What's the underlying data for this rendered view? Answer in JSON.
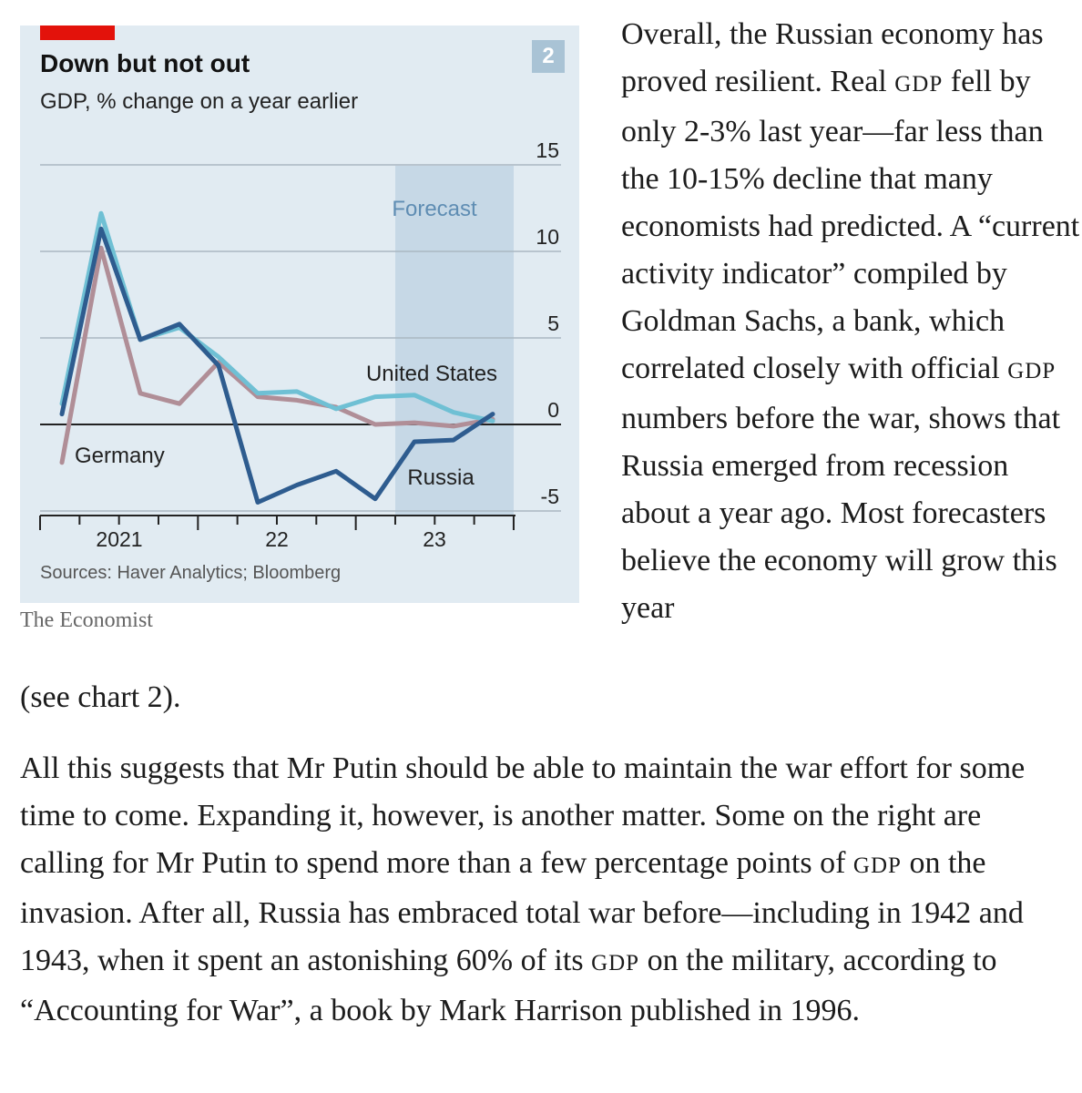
{
  "chart": {
    "badge": "2",
    "title": "Down but not out",
    "subtitle": "GDP, % change on a year earlier",
    "source": "Sources: Haver Analytics; Bloomberg",
    "brand": "The Economist",
    "forecast_label": "Forecast",
    "series_labels": {
      "us": "United States",
      "germany": "Germany",
      "russia": "Russia"
    },
    "colors": {
      "us": "#6fc0d4",
      "germany": "#b08e97",
      "russia": "#2e5c8f",
      "forecast": "#c6d8e6",
      "grid": "#aab8c2",
      "zero": "#222222"
    }
  },
  "chart_data": {
    "type": "line",
    "title": "Down but not out",
    "subtitle": "GDP, % change on a year earlier",
    "x_ticks": [
      "2021",
      "22",
      "23"
    ],
    "x": [
      "2020 Q4",
      "2021 Q1",
      "2021 Q2",
      "2021 Q3",
      "2021 Q4",
      "2022 Q1",
      "2022 Q2",
      "2022 Q3",
      "2022 Q4",
      "2023 Q1",
      "2023 Q2",
      "2023 Q3",
      "2023 Q4"
    ],
    "y_ticks": [
      15,
      10,
      5,
      0,
      -5
    ],
    "ylim": [
      -5,
      15
    ],
    "forecast_from": "2023 Q1",
    "series": [
      {
        "name": "United States",
        "values": [
          1.2,
          12.2,
          4.9,
          5.6,
          3.9,
          1.8,
          1.9,
          0.9,
          1.6,
          1.7,
          0.7,
          0.2,
          null
        ]
      },
      {
        "name": "Germany",
        "values": [
          -2.2,
          10.2,
          1.8,
          1.2,
          3.6,
          1.6,
          1.4,
          1.0,
          0.0,
          0.1,
          -0.1,
          0.3,
          null
        ]
      },
      {
        "name": "Russia",
        "values": [
          0.6,
          11.3,
          4.9,
          5.8,
          3.4,
          -4.5,
          -3.5,
          -2.7,
          -4.3,
          -1.0,
          -0.9,
          0.6,
          null
        ]
      }
    ]
  },
  "article": {
    "p1_part1": "Overall, the Russian economy has proved resilient. Real ",
    "gdp": "GDP",
    "p1_part2": " fell by only 2-3% last year—far less than the 10-15% decline that many economists had predicted. A “current activity indicator” compiled by Goldman Sachs, a bank, which correlated closely with official ",
    "p1_part3": " numbers before the war, shows that Russia emerged from recession about a year ago. Most forecasters believe the economy will grow this year",
    "p1_tail": "(see chart 2).",
    "p2_part1": "All this suggests that Mr Putin should be able to maintain the war effort for some time to come. Expanding it, however, is another matter. Some on the right are calling for Mr Putin to spend more than a few percentage points of ",
    "p2_part2": " on the invasion. After all, Russia has embraced total war before—including in 1942 and 1943, when it spent an astonishing 60% of its ",
    "p2_part3": " on the military, according to “Accounting for War”, a book by Mark Harrison published in 1996."
  }
}
